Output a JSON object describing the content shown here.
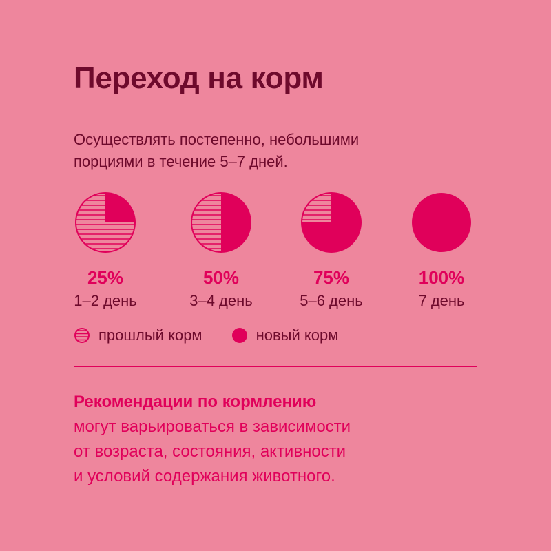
{
  "title": "Переход на корм",
  "intro": {
    "line1": "Осуществлять постепенно, небольшими",
    "line2": "порциями в течение 5–7 дней."
  },
  "colors": {
    "background": "#ee869d",
    "accent": "#e0005a",
    "dark": "#6e0a2c"
  },
  "stages": [
    {
      "percent_label": "25%",
      "new_food_fraction": 0.25,
      "days": "1–2 день"
    },
    {
      "percent_label": "50%",
      "new_food_fraction": 0.5,
      "days": "3–4 день"
    },
    {
      "percent_label": "75%",
      "new_food_fraction": 0.75,
      "days": "5–6 день"
    },
    {
      "percent_label": "100%",
      "new_food_fraction": 1.0,
      "days": "7 день"
    }
  ],
  "legend": {
    "old_food": "прошлый корм",
    "new_food": "новый корм",
    "old_icon": "striped-circle-icon",
    "new_icon": "filled-circle-icon"
  },
  "recommendation": {
    "bold": "Рекомендации по кормлению",
    "line1": "могут варьироваться в зависимости",
    "line2": "от возраста, состояния, активности",
    "line3": "и условий содержания животного."
  }
}
